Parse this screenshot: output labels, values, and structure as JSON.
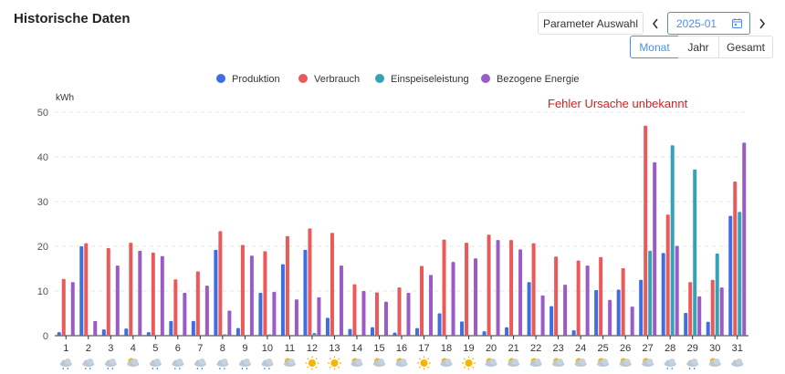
{
  "header": {
    "title": "Historische Daten",
    "param_button": "Parameter Auswahl",
    "date_value": "2025-01",
    "prev_icon": "chevron-left-icon",
    "next_icon": "chevron-right-icon",
    "calendar_icon": "calendar-icon",
    "tabs": [
      "Monat",
      "Jahr",
      "Gesamt"
    ],
    "active_tab": "Monat"
  },
  "colors": {
    "accent": "#4a8ef0",
    "Produktion": "#3e6ee0",
    "Verbrauch": "#ea5a5a",
    "Einspeiseleistung": "#34a3b8",
    "Bezogene Energie": "#9a5bc6",
    "error": "#e01b1b"
  },
  "chart_data": {
    "type": "bar",
    "ylabel": "kWh",
    "ylim": [
      0,
      50
    ],
    "yticks": [
      0,
      10,
      20,
      30,
      40,
      50
    ],
    "legend_position": "top-center",
    "grid": true,
    "annotation": "Fehler Ursache unbekannt",
    "categories": [
      "1",
      "2",
      "3",
      "4",
      "5",
      "6",
      "7",
      "8",
      "9",
      "10",
      "11",
      "12",
      "13",
      "14",
      "15",
      "16",
      "17",
      "18",
      "19",
      "20",
      "21",
      "22",
      "23",
      "24",
      "25",
      "26",
      "27",
      "28",
      "29",
      "30",
      "31"
    ],
    "weather_icons": [
      "cloud-rain",
      "cloud-rain",
      "cloud-rain",
      "sun-cloud",
      "cloud-rain",
      "cloud-rain",
      "cloud-rain",
      "cloud-rain",
      "cloud-rain",
      "cloud-rain",
      "sun-cloud",
      "sun",
      "sun",
      "sun-cloud",
      "sun-cloud",
      "sun-cloud",
      "sun",
      "sun-cloud",
      "sun",
      "sun-cloud",
      "sun-cloud",
      "sun-cloud",
      "sun-cloud",
      "sun-cloud",
      "sun-cloud",
      "sun-cloud",
      "sun-cloud",
      "cloud-rain",
      "cloud-rain",
      "sun-cloud",
      "cloud"
    ],
    "series": [
      {
        "name": "Produktion",
        "values": [
          0.8,
          20.0,
          1.4,
          1.6,
          0.8,
          3.3,
          3.3,
          19.2,
          1.7,
          9.6,
          16.0,
          19.2,
          4.0,
          1.5,
          1.9,
          0.7,
          1.7,
          5.0,
          3.2,
          1.0,
          1.9,
          12.0,
          6.6,
          1.2,
          10.2,
          10.3,
          12.5,
          18.5,
          5.1,
          3.1,
          26.8
        ]
      },
      {
        "name": "Verbrauch",
        "values": [
          12.7,
          20.7,
          19.6,
          20.8,
          18.6,
          12.6,
          14.4,
          23.4,
          20.3,
          18.9,
          22.3,
          24.0,
          23.0,
          11.5,
          9.7,
          10.8,
          15.6,
          21.5,
          20.8,
          22.6,
          21.4,
          20.7,
          17.7,
          16.8,
          17.6,
          15.1,
          47.0,
          27.1,
          12.0,
          12.5,
          34.5
        ]
      },
      {
        "name": "Einspeiseleistung",
        "values": [
          0,
          0,
          0,
          0,
          0,
          0,
          0,
          0.3,
          0,
          0.3,
          0,
          0.6,
          0,
          0,
          0,
          0,
          0,
          0,
          0,
          0,
          0,
          0,
          0,
          0,
          0,
          0,
          19.0,
          42.6,
          37.2,
          18.4,
          27.7
        ]
      },
      {
        "name": "Bezogene Energie",
        "values": [
          12.0,
          3.3,
          15.7,
          19.0,
          17.8,
          9.6,
          11.2,
          5.6,
          17.9,
          9.8,
          8.1,
          8.6,
          15.7,
          10.0,
          7.6,
          9.6,
          13.6,
          16.5,
          17.3,
          21.4,
          19.3,
          9.0,
          11.4,
          15.7,
          8.0,
          6.5,
          38.8,
          20.1,
          8.8,
          10.8,
          43.2
        ]
      }
    ]
  }
}
